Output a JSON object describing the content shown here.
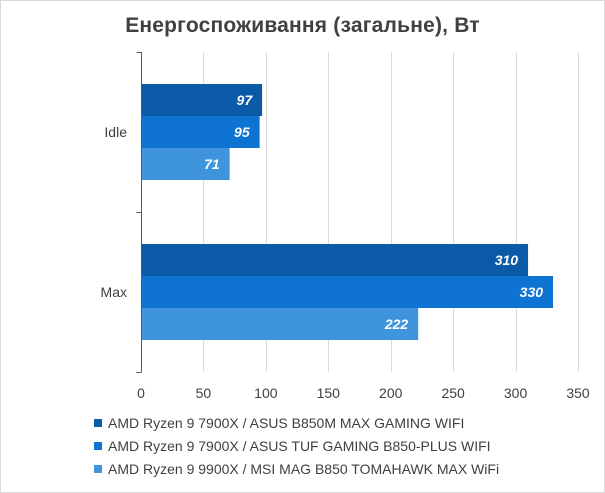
{
  "chart_data": {
    "type": "bar",
    "orientation": "horizontal",
    "title": "Енергоспоживання (загальне), Вт",
    "categories": [
      "Idle",
      "Max"
    ],
    "series": [
      {
        "name": "AMD Ryzen 9 7900X / ASUS B850M MAX GAMING WIFI",
        "color": "#0b5aa8",
        "values": [
          97,
          310
        ]
      },
      {
        "name": "AMD Ryzen 9 7900X / ASUS TUF GAMING B850-PLUS WIFI",
        "color": "#0f73d3",
        "values": [
          95,
          330
        ]
      },
      {
        "name": "AMD Ryzen 9 9900X / MSI MAG B850 TOMAHAWK MAX WiFi",
        "color": "#3e95dd",
        "values": [
          71,
          222
        ]
      }
    ],
    "xlim": [
      0,
      350
    ],
    "xticks": [
      0,
      50,
      100,
      150,
      200,
      250,
      300,
      350
    ],
    "grid": true,
    "legend": "bottom"
  }
}
